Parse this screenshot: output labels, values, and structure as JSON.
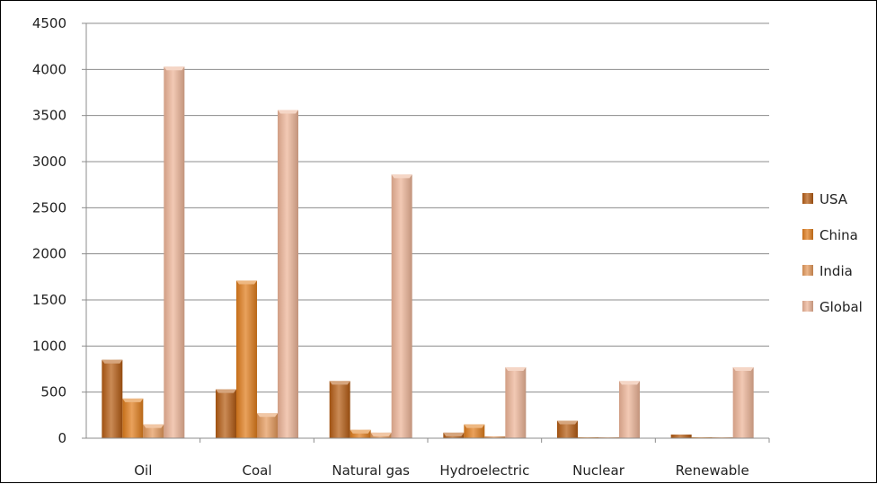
{
  "chart_data": {
    "type": "bar",
    "title": "",
    "xlabel": "",
    "ylabel": "",
    "ylim": [
      0,
      4500
    ],
    "yticks": [
      0,
      500,
      1000,
      1500,
      2000,
      2500,
      3000,
      3500,
      4000,
      4500
    ],
    "grid": true,
    "legend_position": "right",
    "categories": [
      "Oil",
      "Coal",
      "Natural gas",
      "Hydroelectric",
      "Nuclear",
      "Renewable"
    ],
    "series": [
      {
        "name": "USA",
        "color": "#b55c13",
        "values": [
          850,
          530,
          620,
          60,
          190,
          40
        ]
      },
      {
        "name": "China",
        "color": "#e07d1c",
        "values": [
          430,
          1710,
          90,
          150,
          10,
          10
        ]
      },
      {
        "name": "India",
        "color": "#e59a5c",
        "values": [
          150,
          270,
          60,
          20,
          10,
          10
        ]
      },
      {
        "name": "Global",
        "color": "#edb497",
        "values": [
          4030,
          3560,
          2860,
          770,
          620,
          770
        ]
      }
    ]
  }
}
